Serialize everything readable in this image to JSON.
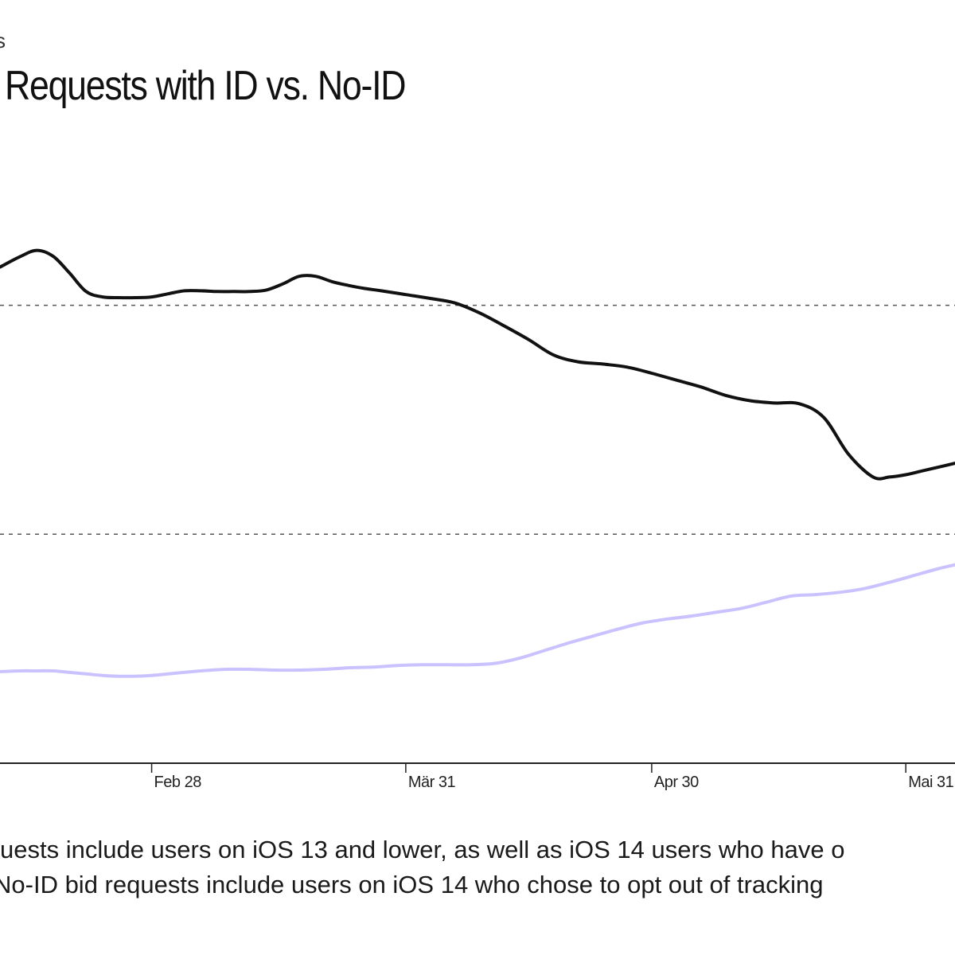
{
  "header": {
    "kicker": "s",
    "title": "Requests with ID vs. No-ID"
  },
  "notes": [
    "uests include users on iOS 13 and lower, as well as iOS 14 users who have o",
    "No-ID bid requests include users on iOS 14 who chose to opt out of tracking"
  ],
  "chart_data": {
    "type": "line",
    "title": "Requests with ID vs. No-ID",
    "x_ticks": [
      "Feb 28",
      "Mär 31",
      "Apr 30",
      "Mai 31"
    ],
    "x_tick_days": [
      0,
      31,
      61,
      92
    ],
    "x_range_days": [
      -18.5,
      98
    ],
    "y_range": [
      0,
      100
    ],
    "gridlines_y": [
      30,
      60
    ],
    "grid": "horizontal dashed",
    "legend": "none",
    "series": [
      {
        "color": "#111111",
        "x_days": [
          -18.5,
          -16,
          -14,
          -12,
          -10,
          -8,
          -6,
          -4,
          -2,
          0,
          2,
          4,
          6,
          8,
          10,
          12,
          14,
          16,
          18,
          20,
          22,
          24,
          26,
          28,
          31,
          34,
          37,
          40,
          43,
          46,
          49,
          52,
          55,
          58,
          61,
          64,
          67,
          70,
          73,
          76,
          79,
          82,
          85,
          88,
          90,
          92,
          94,
          96,
          98
        ],
        "values": [
          65,
          66.4,
          67.2,
          66.4,
          64.2,
          61.8,
          61.1,
          61,
          61,
          61.1,
          61.5,
          61.9,
          61.9,
          61.8,
          61.8,
          61.8,
          62,
          62.8,
          63.8,
          63.8,
          63.1,
          62.6,
          62.2,
          61.9,
          61.4,
          60.9,
          60.3,
          59,
          57.3,
          55.5,
          53.5,
          52.6,
          52.3,
          51.9,
          51.1,
          50.2,
          49.3,
          48.2,
          47.5,
          47.2,
          47.1,
          45.3,
          40.5,
          37.5,
          37.5,
          37.8,
          38.3,
          38.8,
          39.3
        ]
      },
      {
        "color": "#c9c2ff",
        "x_days": [
          -18.5,
          -16,
          -14,
          -12,
          -10,
          -8,
          -6,
          -4,
          -2,
          0,
          3,
          6,
          9,
          12,
          15,
          18,
          21,
          24,
          27,
          30,
          33,
          36,
          39,
          42,
          45,
          48,
          51,
          54,
          57,
          60,
          63,
          66,
          69,
          72,
          75,
          78,
          81,
          84,
          87,
          90,
          93,
          96,
          98
        ],
        "values": [
          12,
          12.1,
          12.1,
          12.1,
          11.9,
          11.7,
          11.5,
          11.4,
          11.4,
          11.5,
          11.8,
          12.1,
          12.3,
          12.3,
          12.2,
          12.2,
          12.3,
          12.5,
          12.6,
          12.8,
          12.9,
          12.9,
          12.9,
          13.1,
          13.8,
          14.8,
          15.8,
          16.7,
          17.6,
          18.4,
          18.9,
          19.3,
          19.8,
          20.3,
          21.1,
          21.9,
          22.1,
          22.4,
          22.9,
          23.7,
          24.6,
          25.5,
          26
        ]
      }
    ]
  }
}
